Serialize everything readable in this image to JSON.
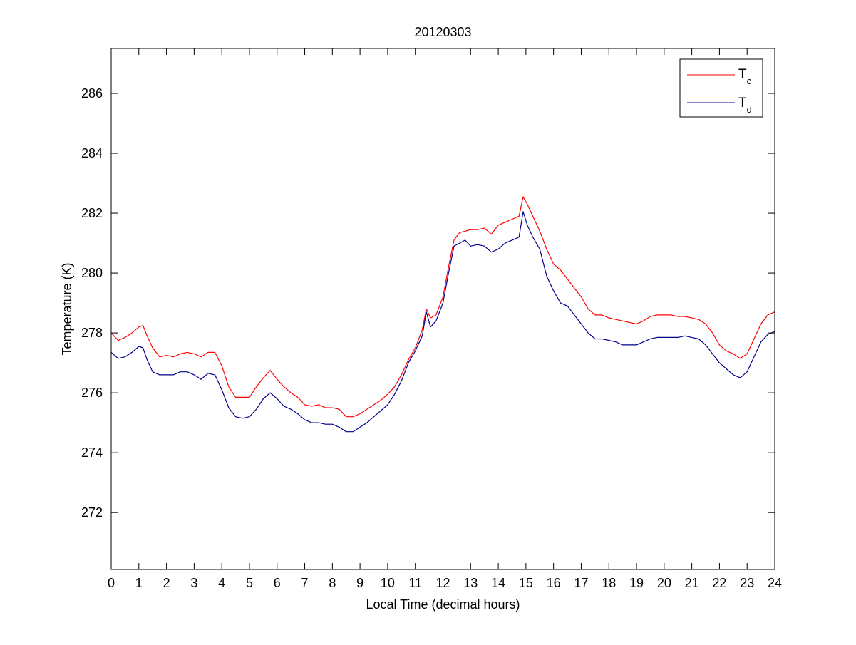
{
  "chart_data": {
    "type": "line",
    "title": "20120303",
    "xlabel": "Local Time (decimal hours)",
    "ylabel": "Temperature (K)",
    "xlim": [
      0,
      24
    ],
    "ylim": [
      270.1,
      287.5
    ],
    "xticks": [
      0,
      1,
      2,
      3,
      4,
      5,
      6,
      7,
      8,
      9,
      10,
      11,
      12,
      13,
      14,
      15,
      16,
      17,
      18,
      19,
      20,
      21,
      22,
      23,
      24
    ],
    "yticks": [
      272,
      274,
      276,
      278,
      280,
      282,
      284,
      286
    ],
    "grid": false,
    "legend_placement": "top-right",
    "series": [
      {
        "name": "T",
        "subscript": "c",
        "color": "#ff0000",
        "x": [
          0,
          0.25,
          0.5,
          0.75,
          1.0,
          1.15,
          1.3,
          1.5,
          1.75,
          2.0,
          2.25,
          2.5,
          2.75,
          3.0,
          3.25,
          3.5,
          3.75,
          4.0,
          4.25,
          4.5,
          4.75,
          5.0,
          5.25,
          5.5,
          5.75,
          6.0,
          6.25,
          6.5,
          6.75,
          7.0,
          7.25,
          7.5,
          7.75,
          8.0,
          8.25,
          8.5,
          8.75,
          9.0,
          9.25,
          9.5,
          9.75,
          10.0,
          10.25,
          10.5,
          10.75,
          11.0,
          11.25,
          11.4,
          11.55,
          11.75,
          12.0,
          12.2,
          12.4,
          12.6,
          12.8,
          13.0,
          13.25,
          13.5,
          13.75,
          14.0,
          14.25,
          14.5,
          14.75,
          14.9,
          15.05,
          15.25,
          15.5,
          15.75,
          16.0,
          16.25,
          16.5,
          16.75,
          17.0,
          17.25,
          17.5,
          17.75,
          18.0,
          18.25,
          18.5,
          18.75,
          19.0,
          19.25,
          19.5,
          19.75,
          20.0,
          20.25,
          20.5,
          20.75,
          21.0,
          21.25,
          21.5,
          21.75,
          22.0,
          22.25,
          22.5,
          22.75,
          23.0,
          23.25,
          23.5,
          23.75,
          24.0
        ],
        "y": [
          278.0,
          277.75,
          277.85,
          278.0,
          278.2,
          278.25,
          277.9,
          277.5,
          277.2,
          277.25,
          277.2,
          277.3,
          277.35,
          277.3,
          277.2,
          277.35,
          277.35,
          276.9,
          276.2,
          275.85,
          275.85,
          275.85,
          276.2,
          276.5,
          276.75,
          276.45,
          276.2,
          276.0,
          275.85,
          275.6,
          275.55,
          275.6,
          275.5,
          275.5,
          275.45,
          275.2,
          275.2,
          275.3,
          275.45,
          275.6,
          275.75,
          275.95,
          276.2,
          276.6,
          277.1,
          277.5,
          278.1,
          278.8,
          278.5,
          278.6,
          279.2,
          280.2,
          281.1,
          281.35,
          281.4,
          281.45,
          281.45,
          281.5,
          281.3,
          281.6,
          281.7,
          281.8,
          281.9,
          282.55,
          282.3,
          281.9,
          281.4,
          280.8,
          280.3,
          280.1,
          279.8,
          279.5,
          279.2,
          278.8,
          278.6,
          278.6,
          278.5,
          278.45,
          278.4,
          278.35,
          278.3,
          278.4,
          278.55,
          278.6,
          278.6,
          278.6,
          278.55,
          278.55,
          278.5,
          278.45,
          278.3,
          278.0,
          277.6,
          277.4,
          277.3,
          277.15,
          277.3,
          277.8,
          278.3,
          278.6,
          278.7
        ]
      },
      {
        "name": "T",
        "subscript": "d",
        "color": "#00008b",
        "x": [
          0,
          0.25,
          0.5,
          0.75,
          1.0,
          1.15,
          1.3,
          1.5,
          1.75,
          2.0,
          2.25,
          2.5,
          2.75,
          3.0,
          3.25,
          3.5,
          3.75,
          4.0,
          4.25,
          4.5,
          4.75,
          5.0,
          5.25,
          5.5,
          5.75,
          6.0,
          6.25,
          6.5,
          6.75,
          7.0,
          7.25,
          7.5,
          7.75,
          8.0,
          8.25,
          8.5,
          8.75,
          9.0,
          9.25,
          9.5,
          9.75,
          10.0,
          10.25,
          10.5,
          10.75,
          11.0,
          11.25,
          11.4,
          11.55,
          11.75,
          12.0,
          12.2,
          12.4,
          12.6,
          12.8,
          13.0,
          13.25,
          13.5,
          13.75,
          14.0,
          14.25,
          14.5,
          14.75,
          14.9,
          15.05,
          15.25,
          15.5,
          15.75,
          16.0,
          16.25,
          16.5,
          16.75,
          17.0,
          17.25,
          17.5,
          17.75,
          18.0,
          18.25,
          18.5,
          18.75,
          19.0,
          19.25,
          19.5,
          19.75,
          20.0,
          20.25,
          20.5,
          20.75,
          21.0,
          21.25,
          21.5,
          21.75,
          22.0,
          22.25,
          22.5,
          22.75,
          23.0,
          23.25,
          23.5,
          23.75,
          24.0
        ],
        "y": [
          277.35,
          277.15,
          277.2,
          277.35,
          277.55,
          277.5,
          277.1,
          276.7,
          276.6,
          276.6,
          276.6,
          276.7,
          276.7,
          276.6,
          276.45,
          276.65,
          276.6,
          276.1,
          275.5,
          275.2,
          275.15,
          275.2,
          275.45,
          275.8,
          276.0,
          275.8,
          275.55,
          275.45,
          275.3,
          275.1,
          275.0,
          275.0,
          274.95,
          274.95,
          274.85,
          274.7,
          274.7,
          274.85,
          275.0,
          275.2,
          275.4,
          275.6,
          275.95,
          276.4,
          277.0,
          277.4,
          277.9,
          278.7,
          278.2,
          278.4,
          279.0,
          280.0,
          280.9,
          281.0,
          281.1,
          280.9,
          280.95,
          280.9,
          280.7,
          280.8,
          281.0,
          281.1,
          281.2,
          282.05,
          281.6,
          281.2,
          280.8,
          279.9,
          279.4,
          279.0,
          278.9,
          278.6,
          278.3,
          278.0,
          277.8,
          277.8,
          277.75,
          277.7,
          277.6,
          277.6,
          277.6,
          277.7,
          277.8,
          277.85,
          277.85,
          277.85,
          277.85,
          277.9,
          277.85,
          277.8,
          277.6,
          277.3,
          277.0,
          276.8,
          276.6,
          276.5,
          276.7,
          277.2,
          277.7,
          277.95,
          278.05
        ]
      }
    ]
  }
}
